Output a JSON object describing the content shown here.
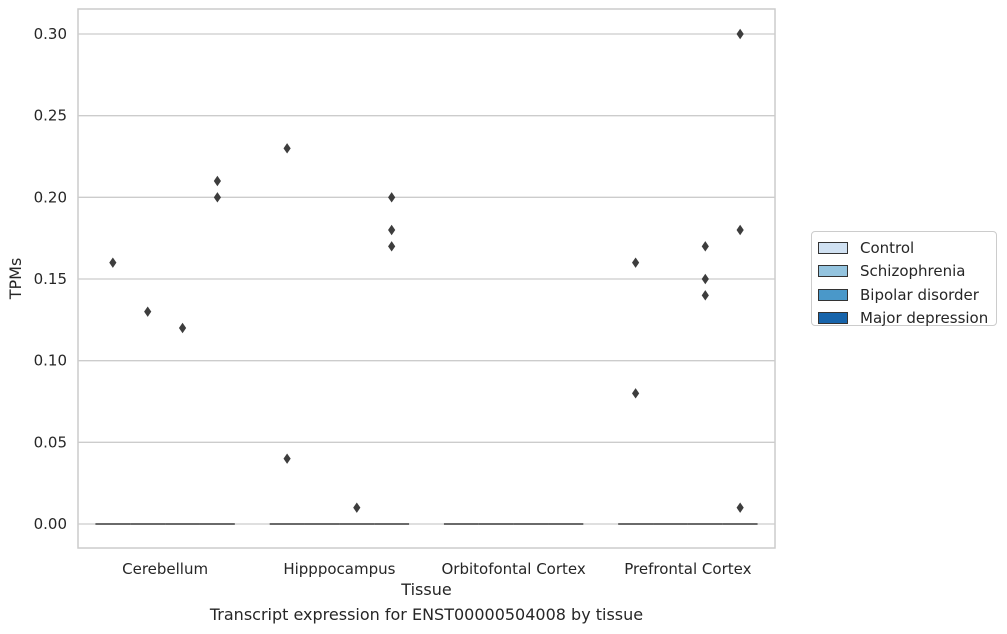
{
  "caption": "Transcript expression for ENST00000504008 by tissue",
  "legend": {
    "items": [
      {
        "label": "Control",
        "color": "#d0e1f2"
      },
      {
        "label": "Schizophrenia",
        "color": "#94c4df"
      },
      {
        "label": "Bipolar disorder",
        "color": "#4a98c9"
      },
      {
        "label": "Major depression",
        "color": "#1764ab"
      }
    ],
    "placement": "right-outside"
  },
  "chart_data": {
    "type": "box",
    "title": "",
    "xlabel": "Tissue",
    "ylabel": "TPMs",
    "categories": [
      "Cerebellum",
      "Hipppocampus",
      "Orbitofontal Cortex",
      "Prefrontal Cortex"
    ],
    "hue": [
      "Control",
      "Schizophrenia",
      "Bipolar disorder",
      "Major depression"
    ],
    "ylim": [
      -0.015,
      0.315
    ],
    "yticks": [
      "0.00",
      "0.05",
      "0.10",
      "0.15",
      "0.20",
      "0.25",
      "0.30"
    ],
    "grid": "horizontal",
    "medians": [
      [
        0,
        0,
        0,
        0
      ],
      [
        0,
        0,
        0,
        0
      ],
      [
        0,
        0,
        0,
        0
      ],
      [
        0,
        0,
        0,
        0
      ]
    ],
    "outliers": [
      {
        "category": "Cerebellum",
        "group": "Control",
        "values": [
          0.16
        ]
      },
      {
        "category": "Cerebellum",
        "group": "Schizophrenia",
        "values": [
          0.13
        ]
      },
      {
        "category": "Cerebellum",
        "group": "Bipolar disorder",
        "values": [
          0.12
        ]
      },
      {
        "category": "Cerebellum",
        "group": "Major depression",
        "values": [
          0.21,
          0.2
        ]
      },
      {
        "category": "Hipppocampus",
        "group": "Control",
        "values": [
          0.23,
          0.04
        ]
      },
      {
        "category": "Hipppocampus",
        "group": "Bipolar disorder",
        "values": [
          0.01
        ]
      },
      {
        "category": "Hipppocampus",
        "group": "Major depression",
        "values": [
          0.2,
          0.18,
          0.17
        ]
      },
      {
        "category": "Prefrontal Cortex",
        "group": "Control",
        "values": [
          0.16,
          0.08
        ]
      },
      {
        "category": "Prefrontal Cortex",
        "group": "Bipolar disorder",
        "values": [
          0.17,
          0.15,
          0.14
        ]
      },
      {
        "category": "Prefrontal Cortex",
        "group": "Major depression",
        "values": [
          0.3,
          0.18,
          0.01
        ]
      }
    ]
  }
}
